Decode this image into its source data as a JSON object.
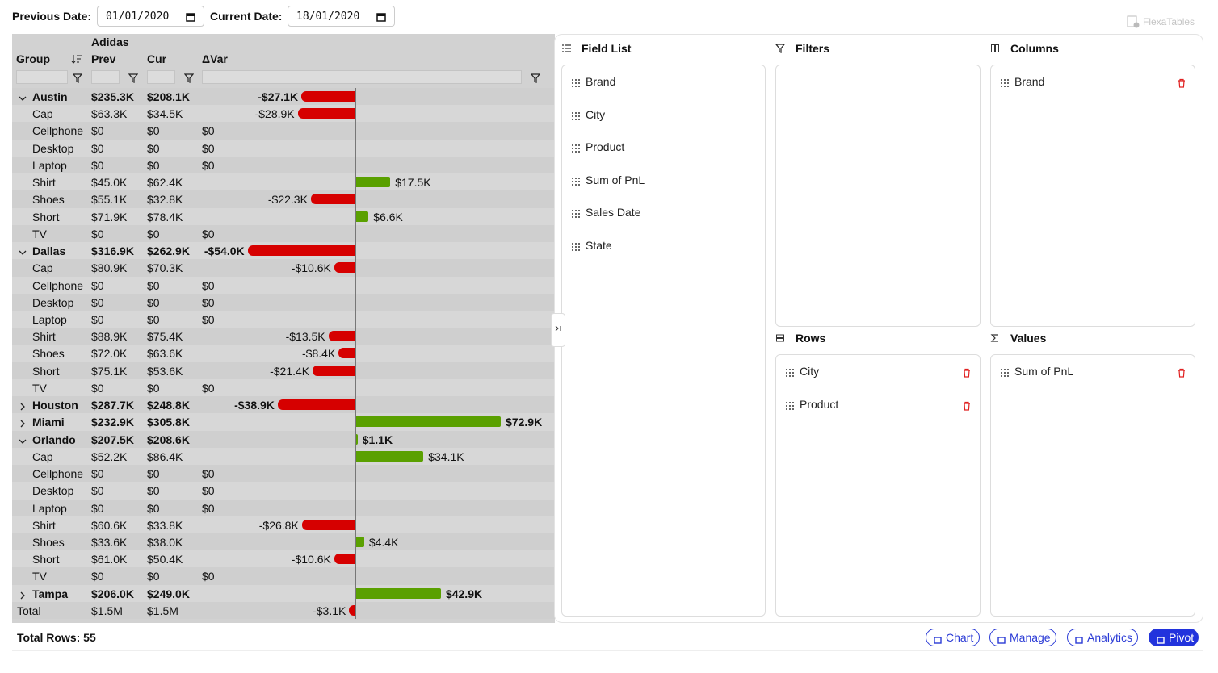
{
  "toolbar": {
    "previous_label": "Previous Date:",
    "previous_value": "01/01/2020",
    "current_label": "Current Date:",
    "current_value": "18/01/2020",
    "logo": "FlexaTables"
  },
  "table": {
    "column_group": "Adidas",
    "headers": [
      "Group",
      "Prev",
      "Cur",
      "ΔVar"
    ],
    "rows": [
      {
        "group": "Austin",
        "prev": "$235.3K",
        "cur": "$208.1K",
        "var": "-$27.1K",
        "level": 0,
        "expanded": true
      },
      {
        "group": "Cap",
        "prev": "$63.3K",
        "cur": "$34.5K",
        "var": "-$28.9K",
        "level": 1
      },
      {
        "group": "Cellphone",
        "prev": "$0",
        "cur": "$0",
        "var": "$0",
        "level": 1
      },
      {
        "group": "Desktop",
        "prev": "$0",
        "cur": "$0",
        "var": "$0",
        "level": 1
      },
      {
        "group": "Laptop",
        "prev": "$0",
        "cur": "$0",
        "var": "$0",
        "level": 1
      },
      {
        "group": "Shirt",
        "prev": "$45.0K",
        "cur": "$62.4K",
        "var": "$17.5K",
        "level": 1
      },
      {
        "group": "Shoes",
        "prev": "$55.1K",
        "cur": "$32.8K",
        "var": "-$22.3K",
        "level": 1
      },
      {
        "group": "Short",
        "prev": "$71.9K",
        "cur": "$78.4K",
        "var": "$6.6K",
        "level": 1
      },
      {
        "group": "TV",
        "prev": "$0",
        "cur": "$0",
        "var": "$0",
        "level": 1
      },
      {
        "group": "Dallas",
        "prev": "$316.9K",
        "cur": "$262.9K",
        "var": "-$54.0K",
        "level": 0,
        "expanded": true
      },
      {
        "group": "Cap",
        "prev": "$80.9K",
        "cur": "$70.3K",
        "var": "-$10.6K",
        "level": 1
      },
      {
        "group": "Cellphone",
        "prev": "$0",
        "cur": "$0",
        "var": "$0",
        "level": 1
      },
      {
        "group": "Desktop",
        "prev": "$0",
        "cur": "$0",
        "var": "$0",
        "level": 1
      },
      {
        "group": "Laptop",
        "prev": "$0",
        "cur": "$0",
        "var": "$0",
        "level": 1
      },
      {
        "group": "Shirt",
        "prev": "$88.9K",
        "cur": "$75.4K",
        "var": "-$13.5K",
        "level": 1
      },
      {
        "group": "Shoes",
        "prev": "$72.0K",
        "cur": "$63.6K",
        "var": "-$8.4K",
        "level": 1
      },
      {
        "group": "Short",
        "prev": "$75.1K",
        "cur": "$53.6K",
        "var": "-$21.4K",
        "level": 1
      },
      {
        "group": "TV",
        "prev": "$0",
        "cur": "$0",
        "var": "$0",
        "level": 1
      },
      {
        "group": "Houston",
        "prev": "$287.7K",
        "cur": "$248.8K",
        "var": "-$38.9K",
        "level": 0,
        "expanded": false
      },
      {
        "group": "Miami",
        "prev": "$232.9K",
        "cur": "$305.8K",
        "var": "$72.9K",
        "level": 0,
        "expanded": false
      },
      {
        "group": "Orlando",
        "prev": "$207.5K",
        "cur": "$208.6K",
        "var": "$1.1K",
        "level": 0,
        "expanded": true
      },
      {
        "group": "Cap",
        "prev": "$52.2K",
        "cur": "$86.4K",
        "var": "$34.1K",
        "level": 1
      },
      {
        "group": "Cellphone",
        "prev": "$0",
        "cur": "$0",
        "var": "$0",
        "level": 1
      },
      {
        "group": "Desktop",
        "prev": "$0",
        "cur": "$0",
        "var": "$0",
        "level": 1
      },
      {
        "group": "Laptop",
        "prev": "$0",
        "cur": "$0",
        "var": "$0",
        "level": 1
      },
      {
        "group": "Shirt",
        "prev": "$60.6K",
        "cur": "$33.8K",
        "var": "-$26.8K",
        "level": 1
      },
      {
        "group": "Shoes",
        "prev": "$33.6K",
        "cur": "$38.0K",
        "var": "$4.4K",
        "level": 1
      },
      {
        "group": "Short",
        "prev": "$61.0K",
        "cur": "$50.4K",
        "var": "-$10.6K",
        "level": 1
      },
      {
        "group": "TV",
        "prev": "$0",
        "cur": "$0",
        "var": "$0",
        "level": 1
      },
      {
        "group": "Tampa",
        "prev": "$206.0K",
        "cur": "$249.0K",
        "var": "$42.9K",
        "level": 0,
        "expanded": false
      },
      {
        "group": "Total",
        "prev": "$1.5M",
        "cur": "$1.5M",
        "var": "-$3.1K",
        "level": 0
      }
    ]
  },
  "panel": {
    "field_list": {
      "title": "Field List",
      "items": [
        "Brand",
        "City",
        "Product",
        "Sum of PnL",
        "Sales Date",
        "State"
      ]
    },
    "filters": {
      "title": "Filters",
      "items": []
    },
    "columns": {
      "title": "Columns",
      "items": [
        "Brand"
      ]
    },
    "rows": {
      "title": "Rows",
      "items": [
        "City",
        "Product"
      ]
    },
    "values": {
      "title": "Values",
      "items": [
        "Sum of PnL"
      ]
    }
  },
  "footer": {
    "total_rows": "Total Rows: 55",
    "buttons": [
      "Chart",
      "Manage",
      "Analytics",
      "Pivot"
    ],
    "active": "Pivot"
  }
}
